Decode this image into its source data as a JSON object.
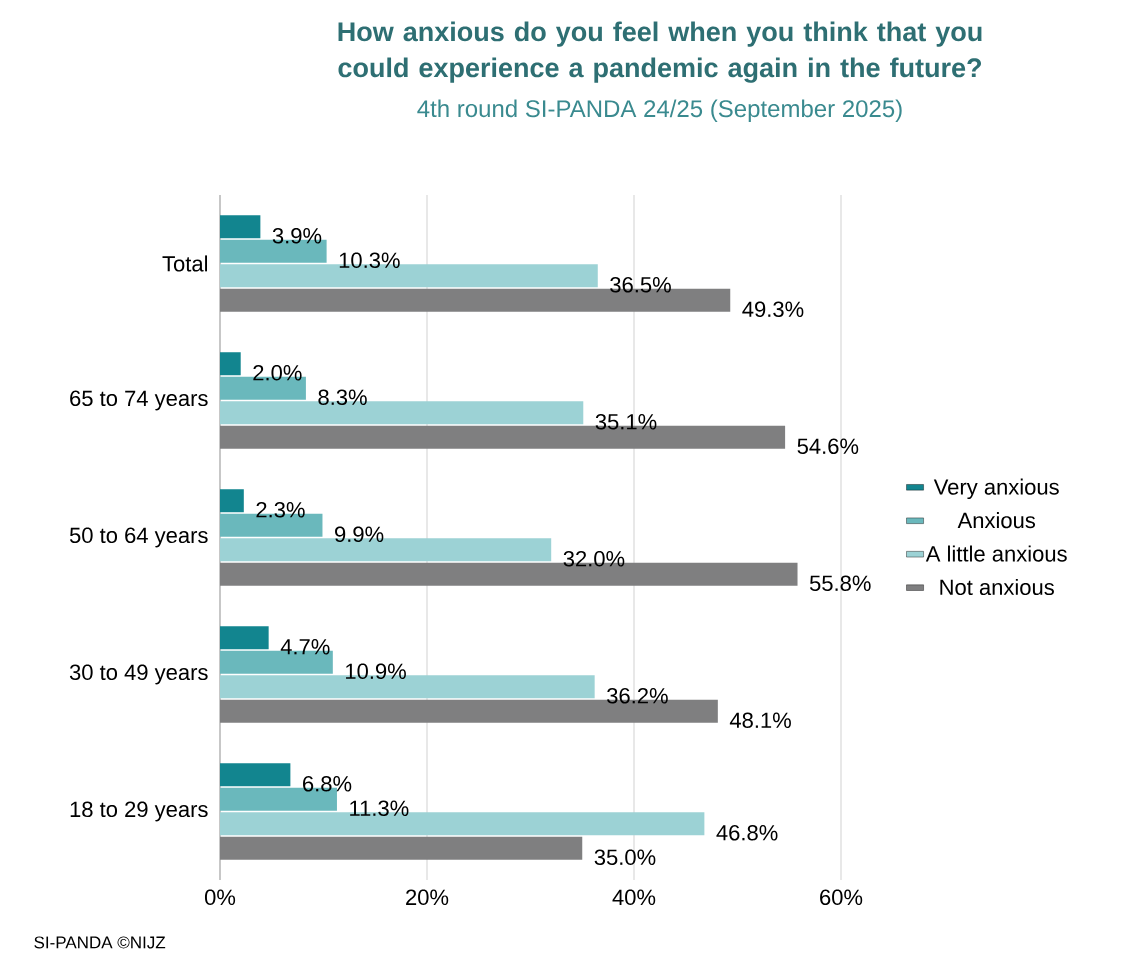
{
  "chart_data": {
    "type": "bar",
    "orientation": "horizontal",
    "title": "How anxious do you feel when you think that you could experience a pandemic again in the future?",
    "subtitle": "4th round SI-PANDA 24/25 (September 2025)",
    "categories": [
      "Total",
      "65 to 74 years",
      "50 to 64 years",
      "30 to 49 years",
      "18 to 29 years"
    ],
    "series": [
      {
        "name": "Very anxious",
        "color": "#12858f",
        "values": [
          3.9,
          2.0,
          2.3,
          4.7,
          6.8
        ],
        "value_labels": [
          "3.9%",
          "2.0%",
          "2.3%",
          "4.7%",
          "6.8%"
        ]
      },
      {
        "name": "Anxious",
        "color": "#6ab8bc",
        "values": [
          10.3,
          8.3,
          9.9,
          10.9,
          11.3
        ],
        "value_labels": [
          "10.3%",
          "8.3%",
          "9.9%",
          "10.9%",
          "11.3%"
        ]
      },
      {
        "name": "A little anxious",
        "color": "#9cd2d5",
        "values": [
          36.5,
          35.1,
          32.0,
          36.2,
          46.8
        ],
        "value_labels": [
          "36.5%",
          "35.1%",
          "32.0%",
          "36.2%",
          "46.8%"
        ]
      },
      {
        "name": "Not anxious",
        "color": "#7f7f80",
        "values": [
          49.3,
          54.6,
          55.8,
          48.1,
          35.0
        ],
        "value_labels": [
          "49.3%",
          "54.6%",
          "55.8%",
          "48.1%",
          "35.0%"
        ]
      }
    ],
    "xlim": [
      0,
      60
    ],
    "xticks": [
      {
        "value": 0,
        "label": "0%"
      },
      {
        "value": 20,
        "label": "20%"
      },
      {
        "value": 40,
        "label": "40%"
      },
      {
        "value": 60,
        "label": "60%"
      }
    ],
    "grid": "x",
    "legend": "right",
    "annotations": [
      "SI-PANDA ©NIJZ"
    ]
  }
}
